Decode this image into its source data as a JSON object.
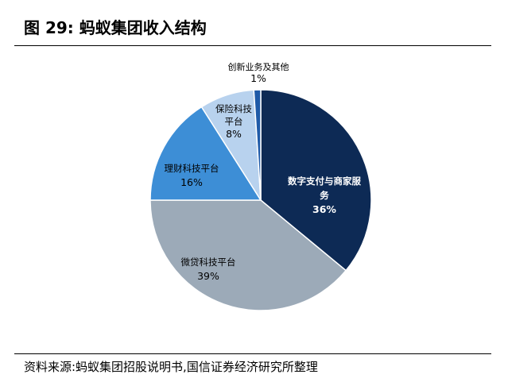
{
  "figure": {
    "title": "图 29:  蚂蚁集团收入结构",
    "source": "资料来源:蚂蚁集团招股说明书,国信证券经济研究所整理"
  },
  "chart_data": {
    "type": "pie",
    "title": "图 29:  蚂蚁集团收入结构",
    "categories": [
      "数字支付与商家服务",
      "微贷科技平台",
      "理财科技平台",
      "保险科技平台",
      "创新业务及其他"
    ],
    "values": [
      36,
      39,
      16,
      8,
      1
    ],
    "value_labels": [
      "36%",
      "39%",
      "16%",
      "8%",
      "1%"
    ],
    "colors": [
      "#0d2a55",
      "#9caab8",
      "#3d8ed6",
      "#b8d2ee",
      "#1e5aa8"
    ],
    "label_colors": [
      "#ffffff",
      "#000000",
      "#000000",
      "#000000",
      "#000000"
    ],
    "start_angle_deg": 0,
    "direction": "clockwise",
    "legend": "none",
    "label_lines": [
      [
        "数字支付与商家服",
        "务"
      ],
      [
        "微贷科技平台"
      ],
      [
        "理财科技平台"
      ],
      [
        "保险科技",
        "平台"
      ],
      [
        "创新业务及其他"
      ]
    ]
  }
}
